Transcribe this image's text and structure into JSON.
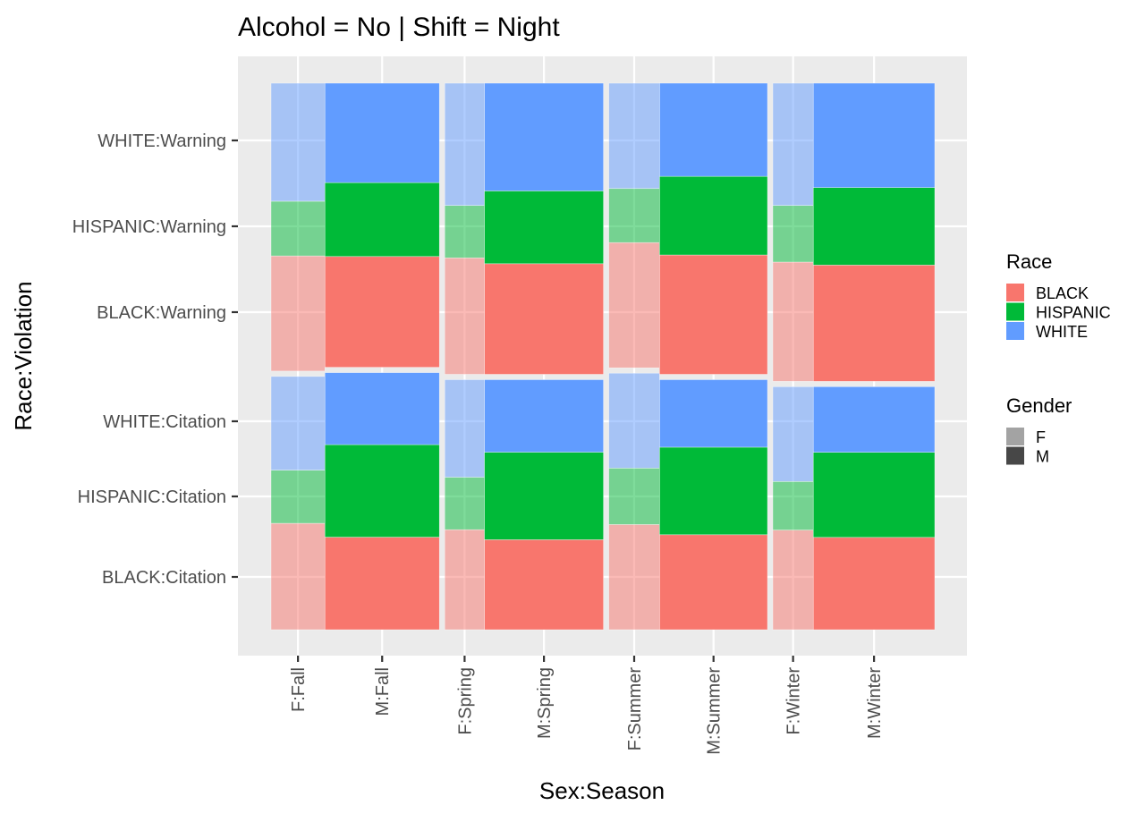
{
  "chart_data": {
    "type": "mosaic",
    "title": "Alcohol = No | Shift = Night",
    "xlabel": "Sex:Season",
    "ylabel": "Race:Violation",
    "x_tick_labels": [
      "F:Fall",
      "M:Fall",
      "F:Spring",
      "M:Spring",
      "F:Summer",
      "M:Summer",
      "F:Winter",
      "M:Winter"
    ],
    "y_tick_labels": [
      "BLACK:Citation",
      "HISPANIC:Citation",
      "WHITE:Citation",
      "BLACK:Warning",
      "HISPANIC:Warning",
      "WHITE:Warning"
    ],
    "seasons": [
      "Fall",
      "Spring",
      "Summer",
      "Winter"
    ],
    "season_share": [
      0.26,
      0.245,
      0.245,
      0.25
    ],
    "female_share": [
      0.32,
      0.25,
      0.32,
      0.25
    ],
    "legend": {
      "placement": "right",
      "race_title": "Race",
      "race_items": [
        {
          "label": "BLACK",
          "color": "#F8766D"
        },
        {
          "label": "HISPANIC",
          "color": "#00BA38"
        },
        {
          "label": "WHITE",
          "color": "#619CFF"
        }
      ],
      "gender_title": "Gender",
      "gender_items": [
        {
          "label": "F",
          "alpha": 0.5
        },
        {
          "label": "M",
          "alpha": 1.0
        }
      ]
    },
    "cells": [
      {
        "season": "Fall",
        "citation_share": [
          0.468,
          0.475,
          0.474,
          0.46
        ],
        "citation": {
          "F": [
            0.42,
            0.21,
            0.37
          ],
          "M": [
            0.36,
            0.36,
            0.28
          ]
        },
        "warning": {
          "F": [
            0.4,
            0.19,
            0.41
          ],
          "M": [
            0.39,
            0.26,
            0.35
          ]
        }
      },
      {
        "season": "Spring",
        "citation_share": [
          0.462,
          0.462,
          0.474,
          0.46
        ],
        "citation": {
          "F": [
            0.4,
            0.21,
            0.39
          ],
          "M": [
            0.36,
            0.35,
            0.29
          ]
        },
        "warning": {
          "F": [
            0.4,
            0.18,
            0.42
          ],
          "M": [
            0.38,
            0.25,
            0.37
          ]
        }
      },
      {
        "season": "Summer",
        "citation_share": [
          0.474,
          0.462,
          0.474,
          0.46
        ],
        "citation": {
          "F": [
            0.41,
            0.22,
            0.37
          ],
          "M": [
            0.38,
            0.35,
            0.27
          ]
        },
        "warning": {
          "F": [
            0.44,
            0.19,
            0.37
          ],
          "M": [
            0.41,
            0.27,
            0.32
          ]
        }
      },
      {
        "season": "Winter",
        "citation_share": [
          0.449,
          0.449,
          0.474,
          0.46
        ],
        "citation": {
          "F": [
            0.41,
            0.2,
            0.39
          ],
          "M": [
            0.38,
            0.35,
            0.27
          ]
        },
        "warning": {
          "F": [
            0.4,
            0.19,
            0.41
          ],
          "M": [
            0.39,
            0.26,
            0.35
          ]
        }
      }
    ]
  }
}
